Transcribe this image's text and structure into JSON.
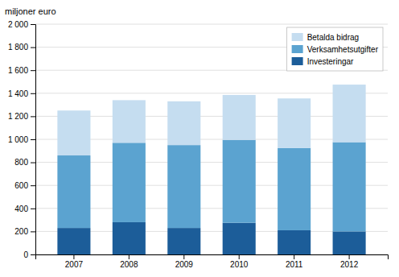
{
  "chart_data": {
    "type": "bar",
    "stacked": true,
    "ylabel": "miljoner euro",
    "categories": [
      "2007",
      "2008",
      "2009",
      "2010",
      "2011",
      "2012"
    ],
    "series": [
      {
        "name": "Investeringar",
        "color": "#1c5d99",
        "values": [
          230,
          280,
          230,
          275,
          210,
          200
        ]
      },
      {
        "name": "Verksamhetsutgifter",
        "color": "#5ba3d0",
        "values": [
          630,
          690,
          720,
          720,
          715,
          775
        ]
      },
      {
        "name": "Betalda bidrag",
        "color": "#c5ddf0",
        "values": [
          390,
          370,
          380,
          390,
          430,
          500
        ]
      }
    ],
    "ylim": [
      0,
      2000
    ],
    "yticks": [
      0,
      200,
      400,
      600,
      800,
      {
        "value": 1000,
        "label": "1 000"
      },
      {
        "value": 1200,
        "label": "1 200"
      },
      {
        "value": 1400,
        "label": "1 400"
      },
      {
        "value": 1600,
        "label": "1 600"
      },
      {
        "value": 1800,
        "label": "1 800"
      },
      {
        "value": 2000,
        "label": "2 000"
      }
    ],
    "grid": true,
    "legend": "upper right"
  }
}
